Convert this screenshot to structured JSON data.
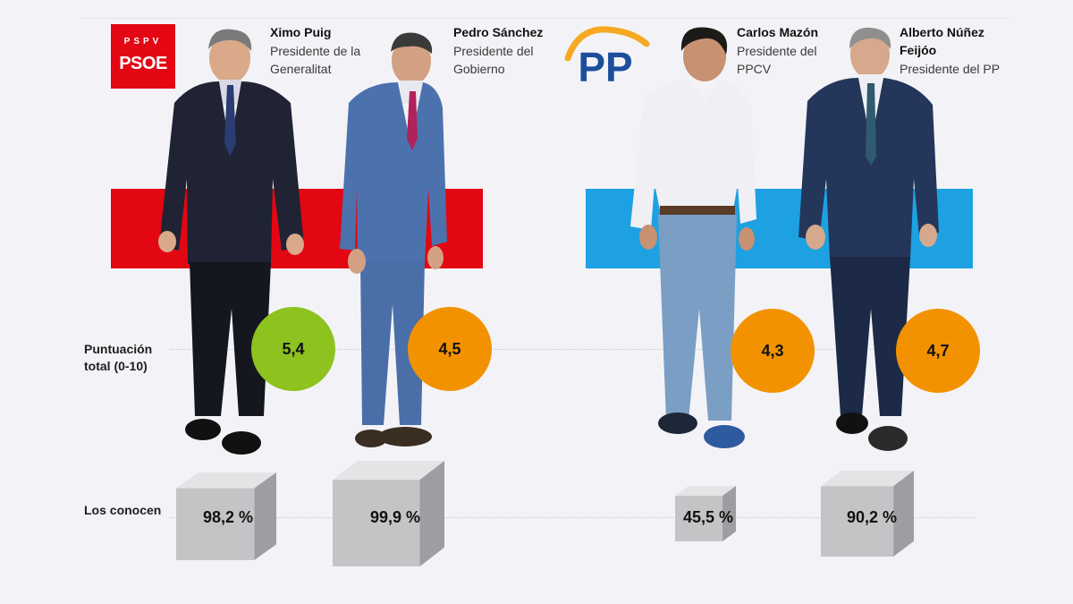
{
  "logos": {
    "psoe_top": "PSPV",
    "psoe_main": "PSOE",
    "pp": "PP",
    "psoe_color": "#e30613",
    "pp_color": "#1d4e9c",
    "pp_arc_color": "#f7a823"
  },
  "row_labels": {
    "score_line1": "Puntuación",
    "score_line2": "total (0-10)",
    "known": "Los conocen"
  },
  "politicians": [
    {
      "name_line1": "Ximo Puig",
      "name_line2": "",
      "role_line1": "Presidente de la",
      "role_line2": "Generalitat"
    },
    {
      "name_line1": "Pedro Sánchez",
      "name_line2": "",
      "role_line1": "Presidente del",
      "role_line2": "Gobierno"
    },
    {
      "name_line1": "Carlos Mazón",
      "name_line2": "",
      "role_line1": "Presidente del",
      "role_line2": "PPCV"
    },
    {
      "name_line1": "Alberto Núñez",
      "name_line2": "Feijóo",
      "role_line1": "Presidente del PP",
      "role_line2": ""
    }
  ],
  "chart_data": {
    "type": "table",
    "categories": [
      "Ximo Puig",
      "Pedro Sánchez",
      "Carlos Mazón",
      "Alberto Núñez Feijóo"
    ],
    "series": [
      {
        "name": "Puntuación total (0-10)",
        "values": [
          5.4,
          4.5,
          4.3,
          4.7
        ],
        "labels": [
          "5,4",
          "4,5",
          "4,3",
          "4,7"
        ],
        "colors": [
          "#8dc21f",
          "#f39200",
          "#f39200",
          "#f39200"
        ]
      },
      {
        "name": "Los conocen",
        "values": [
          98.2,
          99.9,
          45.5,
          90.2
        ],
        "labels": [
          "98,2 %",
          "99,9 %",
          "45,5 %",
          "90,2 %"
        ]
      }
    ],
    "party_colors": [
      "#e30613",
      "#1da1e2"
    ]
  }
}
